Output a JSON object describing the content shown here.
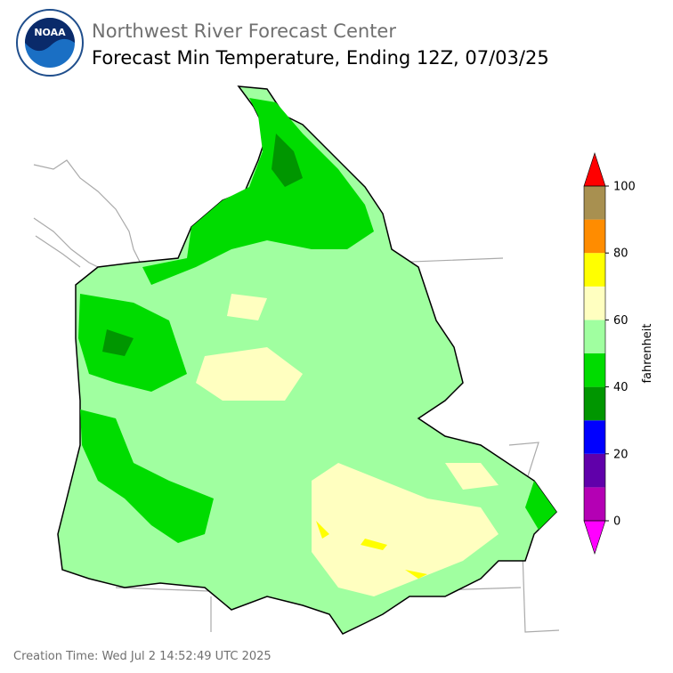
{
  "header": {
    "logo_text": "NOAA",
    "org": "Northwest River Forecast Center",
    "title": "Forecast Min Temperature, Ending 12Z, 07/03/25"
  },
  "colorbar": {
    "label": "fahrenheit",
    "bounds": [
      0,
      10,
      20,
      30,
      40,
      50,
      60,
      70,
      80,
      90,
      100
    ],
    "colors": [
      "#b400b4",
      "#6000aa",
      "#0000ff",
      "#009600",
      "#00dc00",
      "#a0ffa0",
      "#ffffc0",
      "#ffff00",
      "#ff8c00",
      "#a89050"
    ],
    "under": "#ff00ff",
    "over": "#ff0000",
    "ticks": [
      0,
      20,
      40,
      60,
      80,
      100
    ]
  },
  "footer": {
    "creation_time": "Creation Time: Wed Jul 2 14:52:49 UTC 2025"
  }
}
